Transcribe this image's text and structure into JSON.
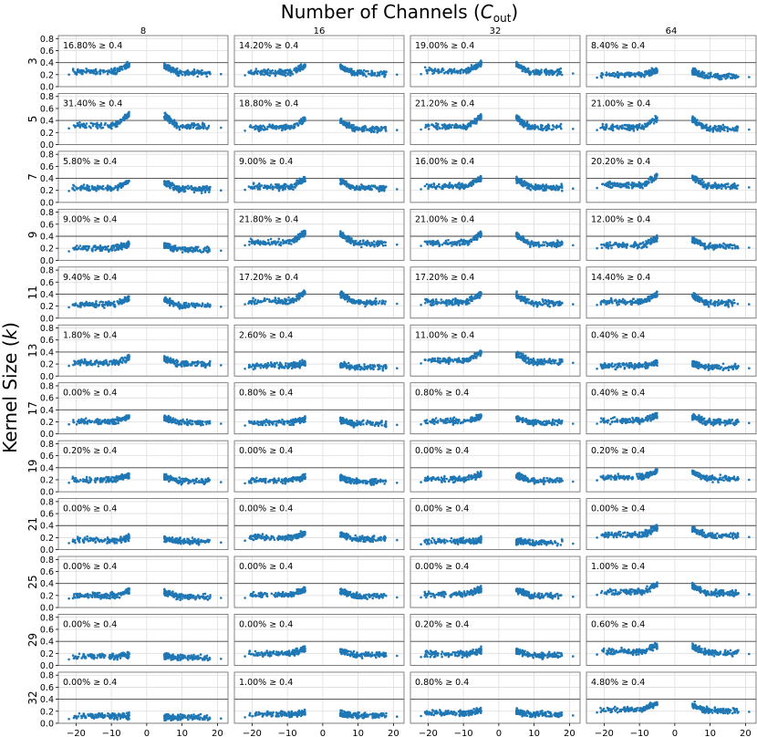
{
  "chart_data": {
    "type": "scatter",
    "suptitle": "Number of Channels (C_out)",
    "suptitle_main": "Number of Channels (",
    "suptitle_var": "C",
    "suptitle_sub": "out",
    "suptitle_close": ")",
    "ylabel": "Kernel Size (k)",
    "ylabel_main": "Kernel Size (",
    "ylabel_var": "k",
    "ylabel_close": ")",
    "channels": [
      "8",
      "16",
      "32",
      "64"
    ],
    "kernel_sizes": [
      "3",
      "5",
      "7",
      "9",
      "11",
      "13",
      "17",
      "19",
      "21",
      "25",
      "29",
      "32"
    ],
    "threshold": 0.4,
    "xlim": [
      -25,
      23
    ],
    "ylim": [
      0,
      0.85
    ],
    "x_ticks": [
      -20,
      -10,
      0,
      10,
      20
    ],
    "y_ticks": [
      0.0,
      0.2,
      0.4,
      0.6,
      0.8
    ],
    "y_tick_labels": [
      "0.0",
      "0.2",
      "0.4",
      "0.6",
      "0.8"
    ],
    "annotations": [
      [
        "16.80% ≥ 0.4",
        "14.20% ≥ 0.4",
        "19.00% ≥ 0.4",
        "8.40% ≥ 0.4"
      ],
      [
        "31.40% ≥ 0.4",
        "18.80% ≥ 0.4",
        "21.20% ≥ 0.4",
        "21.00% ≥ 0.4"
      ],
      [
        "5.80% ≥ 0.4",
        "9.00% ≥ 0.4",
        "16.00% ≥ 0.4",
        "20.20% ≥ 0.4"
      ],
      [
        "9.00% ≥ 0.4",
        "21.80% ≥ 0.4",
        "21.00% ≥ 0.4",
        "12.00% ≥ 0.4"
      ],
      [
        "9.40% ≥ 0.4",
        "17.20% ≥ 0.4",
        "17.20% ≥ 0.4",
        "14.40% ≥ 0.4"
      ],
      [
        "1.80% ≥ 0.4",
        "2.60% ≥ 0.4",
        "11.00% ≥ 0.4",
        "0.40% ≥ 0.4"
      ],
      [
        "0.00% ≥ 0.4",
        "0.80% ≥ 0.4",
        "0.80% ≥ 0.4",
        "0.40% ≥ 0.4"
      ],
      [
        "0.20% ≥ 0.4",
        "0.00% ≥ 0.4",
        "0.00% ≥ 0.4",
        "0.20% ≥ 0.4"
      ],
      [
        "0.00% ≥ 0.4",
        "0.00% ≥ 0.4",
        "0.00% ≥ 0.4",
        "0.00% ≥ 0.4"
      ],
      [
        "0.00% ≥ 0.4",
        "0.00% ≥ 0.4",
        "0.00% ≥ 0.4",
        "1.00% ≥ 0.4"
      ],
      [
        "0.00% ≥ 0.4",
        "0.00% ≥ 0.4",
        "0.20% ≥ 0.4",
        "0.60% ≥ 0.4"
      ],
      [
        "0.00% ≥ 0.4",
        "1.00% ≥ 0.4",
        "0.80% ≥ 0.4",
        "4.80% ≥ 0.4"
      ]
    ],
    "level": [
      [
        0.25,
        0.24,
        0.26,
        0.2
      ],
      [
        0.32,
        0.28,
        0.3,
        0.29
      ],
      [
        0.24,
        0.26,
        0.27,
        0.29
      ],
      [
        0.2,
        0.3,
        0.29,
        0.25
      ],
      [
        0.23,
        0.28,
        0.27,
        0.27
      ],
      [
        0.22,
        0.17,
        0.26,
        0.17
      ],
      [
        0.21,
        0.19,
        0.21,
        0.22
      ],
      [
        0.2,
        0.19,
        0.21,
        0.24
      ],
      [
        0.16,
        0.2,
        0.14,
        0.25
      ],
      [
        0.2,
        0.21,
        0.22,
        0.26
      ],
      [
        0.15,
        0.2,
        0.19,
        0.23
      ],
      [
        0.12,
        0.15,
        0.17,
        0.23
      ]
    ],
    "marker_color": "#1f77b4",
    "grid": true
  }
}
